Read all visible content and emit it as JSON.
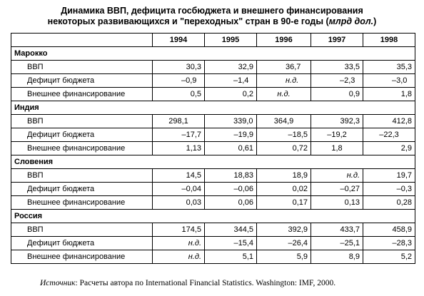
{
  "title": {
    "line1": "Динамика ВВП, дефицита госбюджета и внешнего финансирования",
    "line2_prefix": "некоторых развивающихся и \"переходных\" стран в 90-е годы (",
    "line2_unit": "млрд дол.",
    "line2_suffix": ")"
  },
  "table": {
    "years": [
      "1994",
      "1995",
      "1996",
      "1997",
      "1998"
    ],
    "groups": [
      {
        "country": "Марокко",
        "rows": [
          {
            "label": "ВВП",
            "values": [
              "30,3",
              "32,9",
              "36,7",
              "33,5",
              "35,3"
            ]
          },
          {
            "label": "Дефицит бюджета",
            "values": [
              "–0,9",
              "–1,4",
              "н.д.",
              "–2,3",
              "–3,0"
            ]
          },
          {
            "label": "Внешнее финансирование",
            "values": [
              "0,5",
              "0,2",
              "н.д.",
              "0,9",
              "1,8"
            ]
          }
        ]
      },
      {
        "country": "Индия",
        "rows": [
          {
            "label": "ВВП",
            "values": [
              "298,1",
              "339,0",
              "364,9",
              "392,3",
              "412,8"
            ]
          },
          {
            "label": "Дефицит бюджета",
            "values": [
              "–17,7",
              "–19,9",
              "–18,5",
              "–19,2",
              "–22,3"
            ]
          },
          {
            "label": "Внешнее финансирование",
            "values": [
              "1,13",
              "0,61",
              "0,72",
              "1,8",
              "2,9"
            ]
          }
        ]
      },
      {
        "country": "Словения",
        "rows": [
          {
            "label": "ВВП",
            "values": [
              "14,5",
              "18,83",
              "18,9",
              "н.д.",
              "19,7"
            ]
          },
          {
            "label": "Дефицит бюджета",
            "values": [
              "–0,04",
              "–0,06",
              "0,02",
              "–0,27",
              "–0,3"
            ]
          },
          {
            "label": "Внешнее финансирование",
            "values": [
              "0,03",
              "0,06",
              "0,17",
              "0,13",
              "0,28"
            ]
          }
        ]
      },
      {
        "country": "Россия",
        "rows": [
          {
            "label": "ВВП",
            "values": [
              "174,5",
              "344,5",
              "392,9",
              "433,7",
              "458,9"
            ]
          },
          {
            "label": "Дефицит бюджета",
            "values": [
              "н.д.",
              "–15,4",
              "–26,4",
              "–25,1",
              "–28,3"
            ]
          },
          {
            "label": "Внешнее финансирование",
            "values": [
              "н.д.",
              "5,1",
              "5,9",
              "8,9",
              "5,2"
            ]
          }
        ]
      }
    ]
  },
  "note": {
    "prefix": "Источник",
    "text": ": Расчеты автора по International Financial Statistics. Washington: IMF, 2000."
  }
}
